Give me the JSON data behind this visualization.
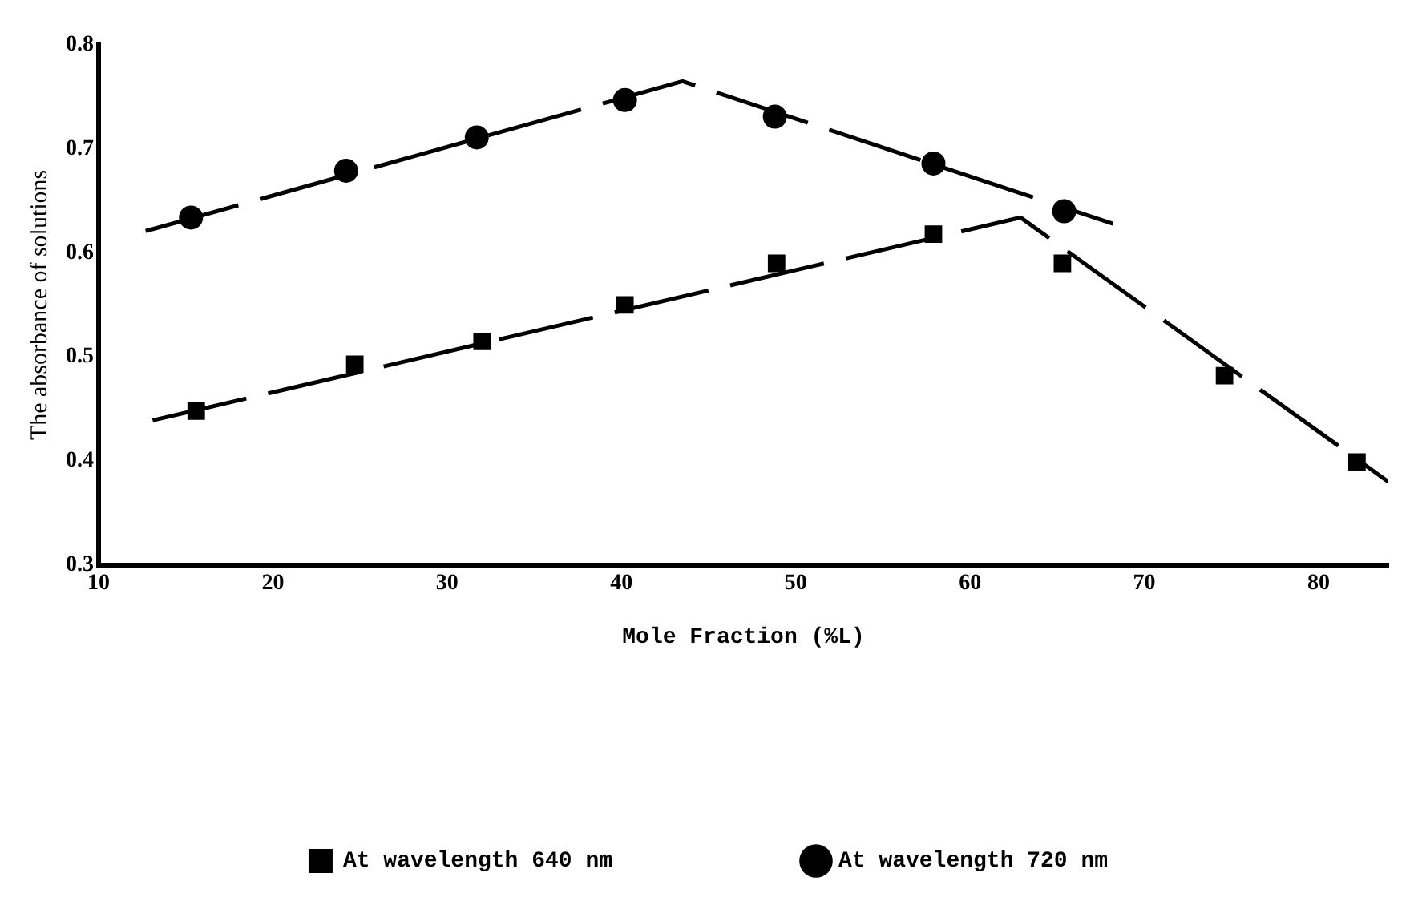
{
  "chart_data": {
    "type": "scatter",
    "xlabel": "Mole Fraction (%L)",
    "ylabel": "The absorbance of solutions",
    "xlim": [
      10,
      84
    ],
    "xticks": [
      10,
      20,
      30,
      40,
      50,
      60,
      70,
      80
    ],
    "ylim": [
      0.3,
      0.8
    ],
    "yticks": [
      0.3,
      0.4,
      0.5,
      0.6,
      0.7,
      0.8
    ],
    "grid": false,
    "legend": "bottom",
    "series": [
      {
        "name": "At wavelength 640 nm",
        "color": "#000000",
        "marker": "square",
        "x": [
          15.6,
          24.7,
          32.0,
          40.2,
          48.9,
          57.9,
          65.3,
          74.6,
          82.2
        ],
        "values": [
          0.448,
          0.493,
          0.515,
          0.55,
          0.59,
          0.618,
          0.59,
          0.482,
          0.399
        ]
      },
      {
        "name": "At wavelength 720 nm",
        "color": "#000000",
        "marker": "circle",
        "x": [
          15.3,
          24.2,
          31.7,
          40.2,
          48.8,
          57.9,
          65.4
        ],
        "values": [
          0.634,
          0.679,
          0.711,
          0.747,
          0.731,
          0.686,
          0.64
        ]
      },
      {
        "type": "line",
        "color": "#000000",
        "marker": "none",
        "line_style": "dashed",
        "x": [
          13.1,
          62.9,
          84
        ],
        "values": [
          0.439,
          0.634,
          0.38
        ]
      },
      {
        "type": "line",
        "color": "#000000",
        "marker": "none",
        "line_style": "dashed",
        "x": [
          12.7,
          43.5,
          68.2
        ],
        "values": [
          0.621,
          0.765,
          0.628
        ]
      }
    ]
  }
}
